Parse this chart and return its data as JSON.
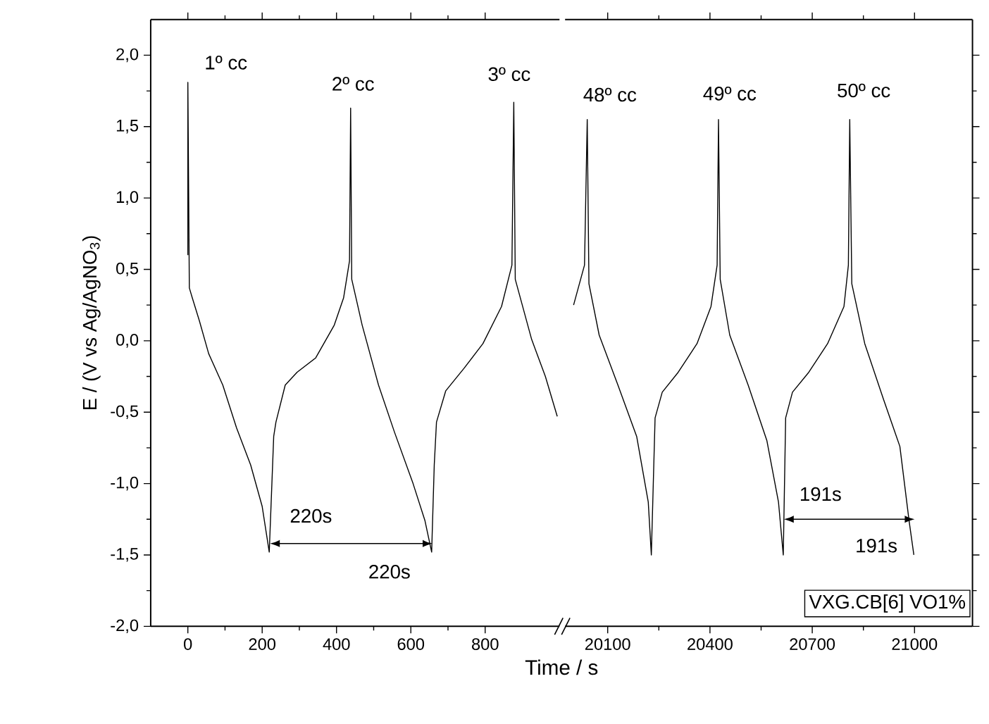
{
  "chart_data": [
    {
      "type": "line",
      "ylabel": "E / (V vs Ag/AgNO$_{3}$)",
      "xlabel": "Time / s",
      "color": "#000000",
      "x": [
        0,
        0,
        4,
        12,
        31,
        56,
        94,
        131,
        169,
        200,
        219,
        231,
        237,
        262,
        294,
        344,
        394,
        419,
        435,
        438,
        441,
        469,
        513,
        556,
        606,
        638,
        656,
        663,
        669,
        694,
        744,
        794,
        844,
        872,
        877,
        881,
        925,
        962,
        994
      ],
      "values": [
        0.6,
        1.81,
        0.37,
        0.3,
        0.14,
        -0.09,
        -0.31,
        -0.61,
        -0.87,
        -1.16,
        -1.48,
        -0.67,
        -0.57,
        -0.31,
        -0.22,
        -0.12,
        0.11,
        0.3,
        0.56,
        1.63,
        0.43,
        0.11,
        -0.31,
        -0.64,
        -1.0,
        -1.26,
        -1.48,
        -0.87,
        -0.57,
        -0.35,
        -0.19,
        -0.02,
        0.24,
        0.53,
        1.67,
        0.43,
        0.01,
        -0.25,
        -0.53
      ],
      "xlim": [
        -100,
        1000
      ],
      "xticks": [
        0,
        200,
        400,
        600,
        800
      ],
      "ylim": [
        -2.0,
        2.25
      ],
      "yticks": [
        {
          "value": -2.0,
          "label": "-2,0"
        },
        {
          "value": -1.5,
          "label": "-1,5"
        },
        {
          "value": -1.0,
          "label": "-1,0"
        },
        {
          "value": -0.5,
          "label": "-0,5"
        },
        {
          "value": 0.0,
          "label": "0,0"
        },
        {
          "value": 0.5,
          "label": "0,5"
        },
        {
          "value": 1.0,
          "label": "1,0"
        },
        {
          "value": 1.5,
          "label": "1,5"
        },
        {
          "value": 2.0,
          "label": "2,0"
        }
      ],
      "annotations": [
        "1º cc",
        "2º cc",
        "3º cc",
        "220s",
        {
          "text": "220s",
          "x": 656,
          "y": -1.42
        }
      ]
    },
    {
      "type": "line",
      "color": "#000000",
      "tick_labels": "x",
      "x": [
        20000,
        20032,
        20040,
        20045,
        20075,
        20130,
        20185,
        20219,
        20228,
        20239,
        20260,
        20307,
        20362,
        20403,
        20421,
        20425,
        20430,
        20458,
        20512,
        20567,
        20601,
        20615,
        20622,
        20642,
        20690,
        20745,
        20793,
        20806,
        20810,
        20816,
        20854,
        20909,
        20957,
        20984,
        20998
      ],
      "values": [
        0.25,
        0.53,
        1.55,
        0.4,
        0.04,
        -0.31,
        -0.67,
        -1.13,
        -1.5,
        -0.54,
        -0.36,
        -0.22,
        -0.02,
        0.24,
        0.53,
        1.55,
        0.43,
        0.04,
        -0.31,
        -0.7,
        -1.13,
        -1.5,
        -0.54,
        -0.36,
        -0.22,
        -0.02,
        0.24,
        0.53,
        1.55,
        0.4,
        -0.02,
        -0.41,
        -0.74,
        -1.26,
        -1.5
      ],
      "xlim": [
        19975,
        21170
      ],
      "xticks": [
        20100,
        20400,
        20700,
        21000
      ],
      "ylim": [
        -2.0,
        2.25
      ],
      "yticks": [
        {
          "value": -2.0,
          "label": null
        },
        {
          "value": -1.5,
          "label": null
        },
        {
          "value": -1.0,
          "label": null
        },
        {
          "value": -0.5,
          "label": null
        },
        {
          "value": 0.0,
          "label": null
        },
        {
          "value": 0.5,
          "label": null
        },
        {
          "value": 1.0,
          "label": null
        },
        {
          "value": 1.5,
          "label": null
        },
        {
          "value": 2.0,
          "label": null
        }
      ],
      "annotations": [
        "VXG.CB[6] VO1%",
        "48º cc",
        "49º cc",
        "50º cc",
        "191s",
        {
          "text": "191s",
          "x": 20998,
          "y": -1.25
        }
      ]
    }
  ]
}
